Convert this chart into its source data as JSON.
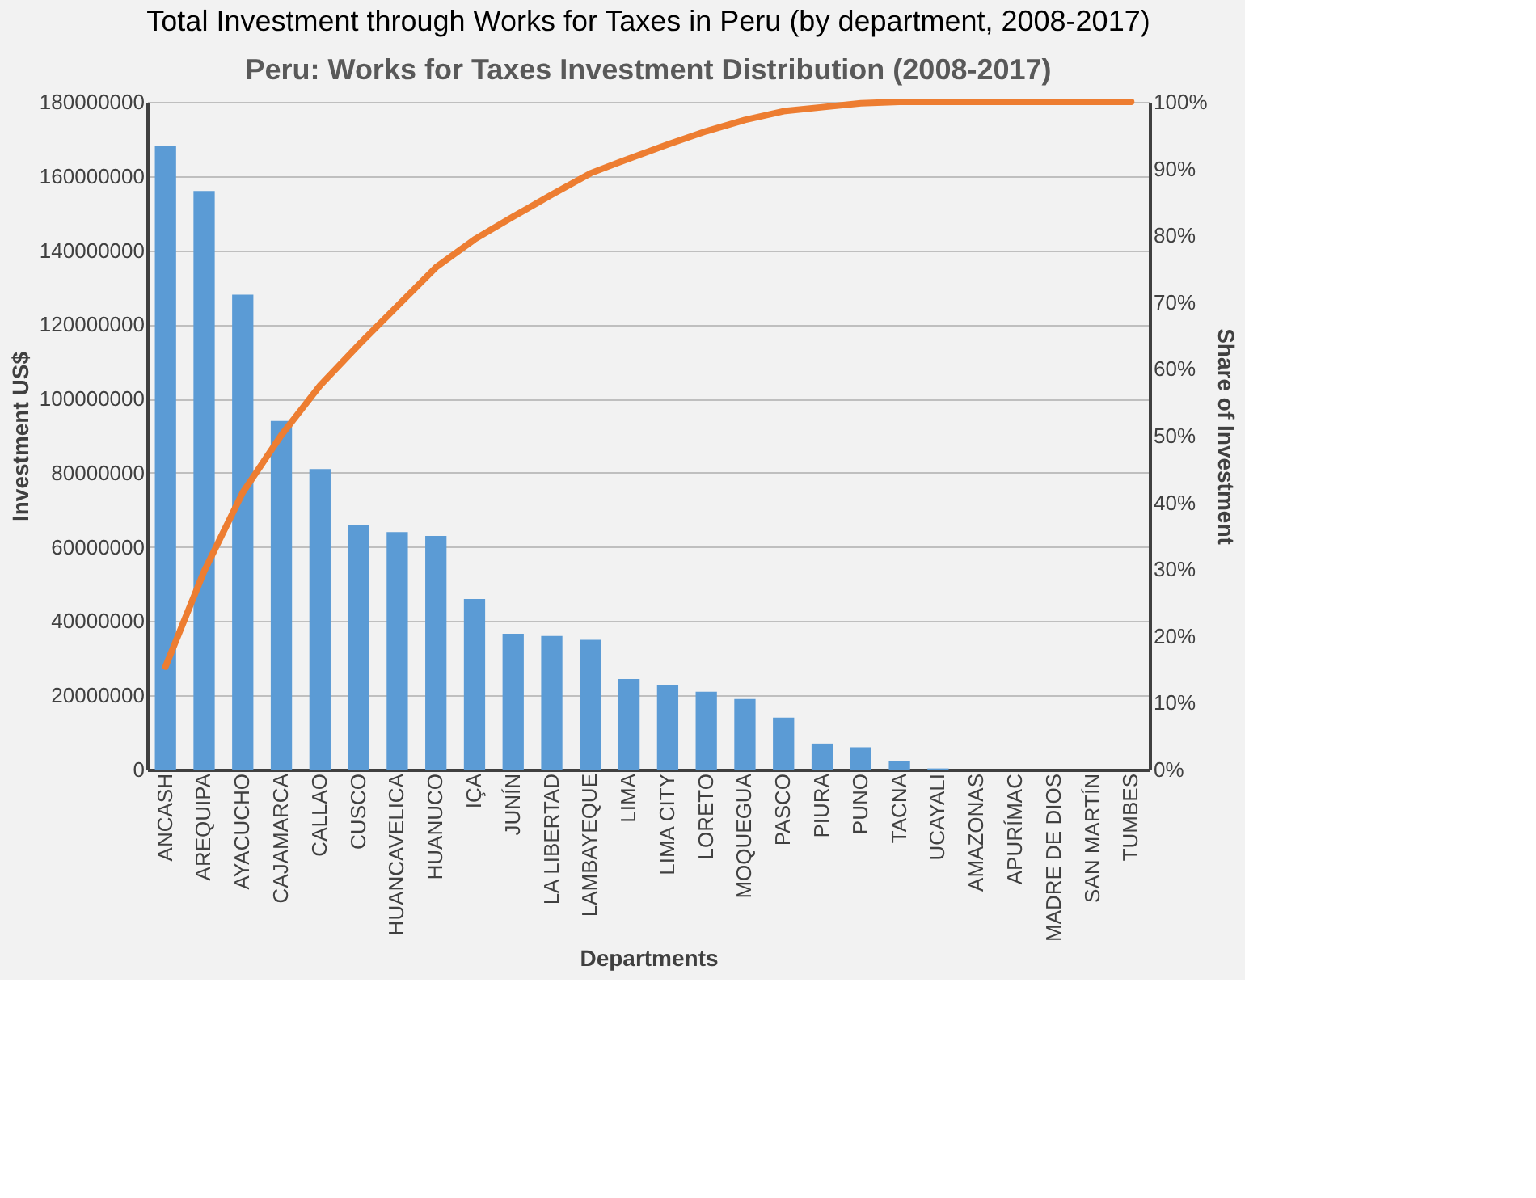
{
  "chart_data": {
    "type": "bar",
    "title": "Total Investment through Works for Taxes in Peru (by department, 2008-2017)",
    "subtitle": "Peru: Works for Taxes Investment Distribution (2008-2017)",
    "xlabel": "Departments",
    "ylabel": "Investment US$",
    "y2label": "Share of Investment",
    "categories": [
      "ANCASH",
      "AREQUIPA",
      "AYACUCHO",
      "CAJAMARCA",
      "CALLAO",
      "CUSCO",
      "HUANCAVELICA",
      "HUANUCO",
      "IÇA",
      "JUNÍN",
      "LA LIBERTAD",
      "LAMBAYEQUE",
      "LIMA",
      "LIMA CITY",
      "LORETO",
      "MOQUEGUA",
      "PASCO",
      "PIURA",
      "PUNO",
      "TACNA",
      "UCAYALI",
      "AMAZONAS",
      "APURÍMAC",
      "MADRE DE DIOS",
      "SAN MARTÍN",
      "TUMBES"
    ],
    "series": [
      {
        "color": "#5b9bd5",
        "values": [
          168000000,
          156000000,
          128000000,
          94000000,
          81000000,
          66000000,
          64000000,
          63000000,
          46000000,
          36600000,
          36000000,
          35000000,
          24400000,
          22700000,
          21000000,
          19000000,
          14000000,
          7000000,
          6000000,
          2200000,
          300000,
          0,
          0,
          0,
          0,
          0
        ]
      },
      {
        "type": "line",
        "axis": "y2",
        "color": "#ed7d31",
        "values": [
          15.4,
          29.7,
          41.5,
          50.1,
          57.5,
          63.6,
          69.4,
          75.2,
          79.4,
          82.8,
          86.1,
          89.3,
          91.5,
          93.6,
          95.6,
          97.3,
          98.6,
          99.2,
          99.8,
          100,
          100,
          100,
          100,
          100,
          100,
          100
        ]
      }
    ],
    "ylim": [
      0,
      180000000
    ],
    "yticks": [
      0,
      20000000,
      40000000,
      60000000,
      80000000,
      100000000,
      120000000,
      140000000,
      160000000,
      180000000
    ],
    "y2lim": [
      0,
      100
    ],
    "y2ticks": [
      {
        "value": 0,
        "label": "0%"
      },
      {
        "value": 10,
        "label": "10%"
      },
      {
        "value": 20,
        "label": "20%"
      },
      {
        "value": 30,
        "label": "30%"
      },
      {
        "value": 40,
        "label": "40%"
      },
      {
        "value": 50,
        "label": "50%"
      },
      {
        "value": 60,
        "label": "60%"
      },
      {
        "value": 70,
        "label": "70%"
      },
      {
        "value": 80,
        "label": "80%"
      },
      {
        "value": 90,
        "label": "90%"
      },
      {
        "value": 100,
        "label": "100%"
      }
    ],
    "grid": "y"
  }
}
